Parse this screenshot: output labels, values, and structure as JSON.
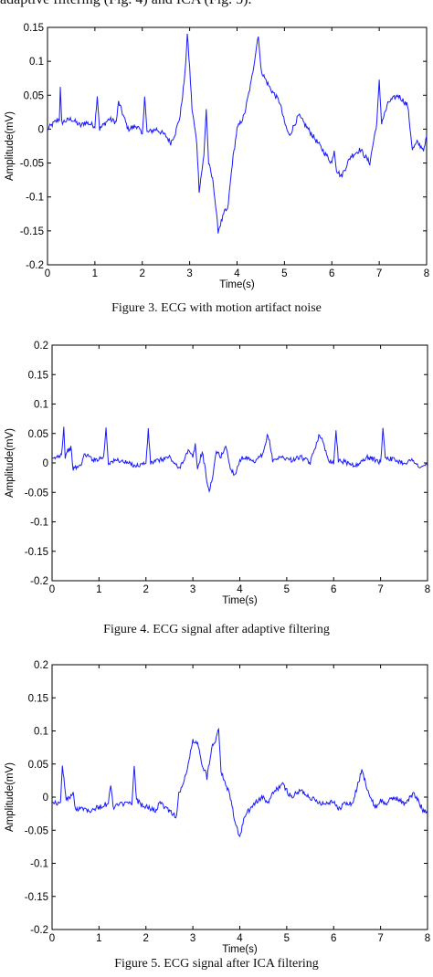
{
  "page": {
    "top_text": "adaptive filtering (Fig. 4) and ICA (Fig. 5)."
  },
  "figures": [
    {
      "caption": "Figure 3. ECG with motion artifact noise"
    },
    {
      "caption": "Figure 4. ECG signal after adaptive filtering"
    },
    {
      "caption": "Figure 5. ECG signal after ICA filtering"
    }
  ],
  "chart_data": [
    {
      "type": "line",
      "xlabel": "Time(s)",
      "ylabel": "Amplitude(mV)",
      "xlim": [
        0,
        8
      ],
      "ylim": [
        -0.2,
        0.15
      ],
      "xticks": [
        "0",
        "1",
        "2",
        "3",
        "4",
        "5",
        "6",
        "7",
        "8"
      ],
      "yticks": [
        "0.15",
        "0.1",
        "0.05",
        "0",
        "-0.05",
        "-0.1",
        "-0.15",
        "-0.2"
      ],
      "grid": false,
      "line_color": "#1a1aff",
      "series": [
        {
          "x": [
            0,
            0.15,
            0.25,
            0.27,
            0.3,
            0.5,
            0.7,
            0.8,
            1.0,
            1.05,
            1.1,
            1.3,
            1.45,
            1.5,
            1.7,
            1.9,
            2.0,
            2.05,
            2.1,
            2.3,
            2.5,
            2.6,
            2.7,
            2.8,
            2.9,
            2.95,
            3.0,
            3.05,
            3.15,
            3.2,
            3.3,
            3.35,
            3.4,
            3.5,
            3.6,
            3.65,
            3.75,
            3.8,
            3.9,
            4.0,
            4.15,
            4.3,
            4.45,
            4.5,
            4.55,
            4.7,
            4.9,
            5.0,
            5.1,
            5.3,
            5.5,
            5.7,
            5.9,
            6.0,
            6.05,
            6.1,
            6.2,
            6.4,
            6.6,
            6.8,
            6.95,
            7.0,
            7.05,
            7.2,
            7.4,
            7.6,
            7.7,
            7.8,
            7.95,
            8.0
          ],
          "y": [
            0.0,
            0.01,
            0.015,
            0.06,
            0.01,
            0.015,
            0.005,
            0.01,
            0.005,
            0.05,
            0.0,
            0.015,
            0.01,
            0.04,
            0.0,
            0.005,
            -0.01,
            0.05,
            -0.005,
            0.0,
            -0.01,
            -0.02,
            -0.005,
            0.02,
            0.08,
            0.14,
            0.09,
            0.03,
            -0.02,
            -0.09,
            -0.04,
            0.03,
            -0.05,
            -0.08,
            -0.15,
            -0.14,
            -0.12,
            -0.12,
            -0.05,
            0.0,
            0.02,
            0.07,
            0.14,
            0.09,
            0.08,
            0.06,
            0.04,
            0.01,
            -0.01,
            0.02,
            0.0,
            -0.02,
            -0.04,
            -0.05,
            -0.03,
            -0.06,
            -0.07,
            -0.04,
            -0.03,
            -0.05,
            0.01,
            0.07,
            0.01,
            0.04,
            0.05,
            0.035,
            -0.03,
            -0.02,
            -0.03,
            -0.01
          ]
        }
      ]
    },
    {
      "type": "line",
      "xlabel": "Time(s)",
      "ylabel": "Amplitude(mV)",
      "xlim": [
        0,
        8
      ],
      "ylim": [
        -0.2,
        0.2
      ],
      "xticks": [
        "0",
        "1",
        "2",
        "3",
        "4",
        "5",
        "6",
        "7",
        "8"
      ],
      "yticks": [
        "0.2",
        "0.15",
        "0.1",
        "0.05",
        "0",
        "-0.05",
        "-0.1",
        "-0.15",
        "-0.2"
      ],
      "grid": false,
      "line_color": "#1a1aff",
      "series": [
        {
          "x": [
            0,
            0.1,
            0.2,
            0.25,
            0.28,
            0.32,
            0.4,
            0.45,
            0.6,
            0.7,
            0.9,
            1.1,
            1.15,
            1.2,
            1.4,
            1.6,
            1.8,
            2.0,
            2.05,
            2.1,
            2.3,
            2.5,
            2.7,
            2.9,
            3.0,
            3.05,
            3.1,
            3.2,
            3.3,
            3.35,
            3.45,
            3.5,
            3.6,
            3.7,
            3.8,
            3.9,
            4.0,
            4.1,
            4.3,
            4.5,
            4.6,
            4.7,
            4.9,
            5.1,
            5.3,
            5.5,
            5.7,
            5.9,
            6.0,
            6.05,
            6.1,
            6.3,
            6.5,
            6.7,
            6.9,
            7.0,
            7.05,
            7.1,
            7.3,
            7.5,
            7.7,
            7.85,
            8.0
          ],
          "y": [
            0.005,
            0.01,
            0.015,
            0.06,
            0.01,
            0.02,
            0.025,
            -0.01,
            -0.005,
            0.015,
            0.005,
            0.01,
            0.06,
            0.0,
            0.005,
            0.0,
            -0.005,
            0.0,
            0.055,
            0.0,
            0.005,
            0.01,
            -0.01,
            0.02,
            0.01,
            0.03,
            -0.01,
            0.02,
            -0.03,
            -0.05,
            -0.01,
            0.02,
            0.01,
            0.03,
            -0.01,
            -0.02,
            0.005,
            0.01,
            0.0,
            0.015,
            0.05,
            0.005,
            0.01,
            0.005,
            0.01,
            0.0,
            0.05,
            0.005,
            0.0,
            0.055,
            0.005,
            0.0,
            -0.005,
            0.01,
            0.005,
            0.0,
            0.06,
            0.01,
            0.005,
            0.0,
            0.005,
            -0.01,
            0.0
          ]
        }
      ]
    },
    {
      "type": "line",
      "xlabel": "Time(s)",
      "ylabel": "Amplitude(mV)",
      "xlim": [
        0,
        8
      ],
      "ylim": [
        -0.2,
        0.2
      ],
      "xticks": [
        "0",
        "1",
        "2",
        "3",
        "4",
        "5",
        "6",
        "7",
        "8"
      ],
      "yticks": [
        "0.2",
        "0.15",
        "0.1",
        "0.05",
        "0",
        "-0.05",
        "-0.1",
        "-0.15",
        "-0.2"
      ],
      "grid": false,
      "line_color": "#1a1aff",
      "series": [
        {
          "x": [
            0,
            0.1,
            0.18,
            0.22,
            0.3,
            0.45,
            0.5,
            0.6,
            0.8,
            1.0,
            1.2,
            1.25,
            1.3,
            1.5,
            1.7,
            1.75,
            1.8,
            2.0,
            2.2,
            2.3,
            2.5,
            2.65,
            2.7,
            2.8,
            2.9,
            3.0,
            3.1,
            3.2,
            3.3,
            3.4,
            3.5,
            3.55,
            3.6,
            3.7,
            3.8,
            3.85,
            3.9,
            4.0,
            4.1,
            4.3,
            4.5,
            4.6,
            4.7,
            4.9,
            5.1,
            5.3,
            5.4,
            5.6,
            5.8,
            6.0,
            6.1,
            6.2,
            6.4,
            6.6,
            6.8,
            6.9,
            7.0,
            7.1,
            7.3,
            7.5,
            7.7,
            7.8,
            7.9,
            8.0
          ],
          "y": [
            -0.005,
            -0.01,
            -0.01,
            0.05,
            -0.005,
            0.005,
            -0.02,
            -0.015,
            -0.02,
            -0.015,
            -0.01,
            0.02,
            -0.015,
            -0.01,
            -0.01,
            0.045,
            -0.005,
            -0.015,
            -0.02,
            -0.01,
            -0.02,
            -0.03,
            0.005,
            0.02,
            0.05,
            0.085,
            0.08,
            0.05,
            0.03,
            0.075,
            0.09,
            0.105,
            0.04,
            0.02,
            0.0,
            -0.02,
            -0.04,
            -0.06,
            -0.03,
            -0.01,
            0.0,
            -0.01,
            0.005,
            0.02,
            0.0,
            0.01,
            0.005,
            -0.005,
            -0.01,
            -0.005,
            -0.02,
            -0.01,
            -0.01,
            0.04,
            -0.005,
            -0.015,
            -0.005,
            -0.01,
            0.0,
            -0.01,
            0.005,
            -0.005,
            -0.02,
            -0.02
          ]
        }
      ]
    }
  ]
}
